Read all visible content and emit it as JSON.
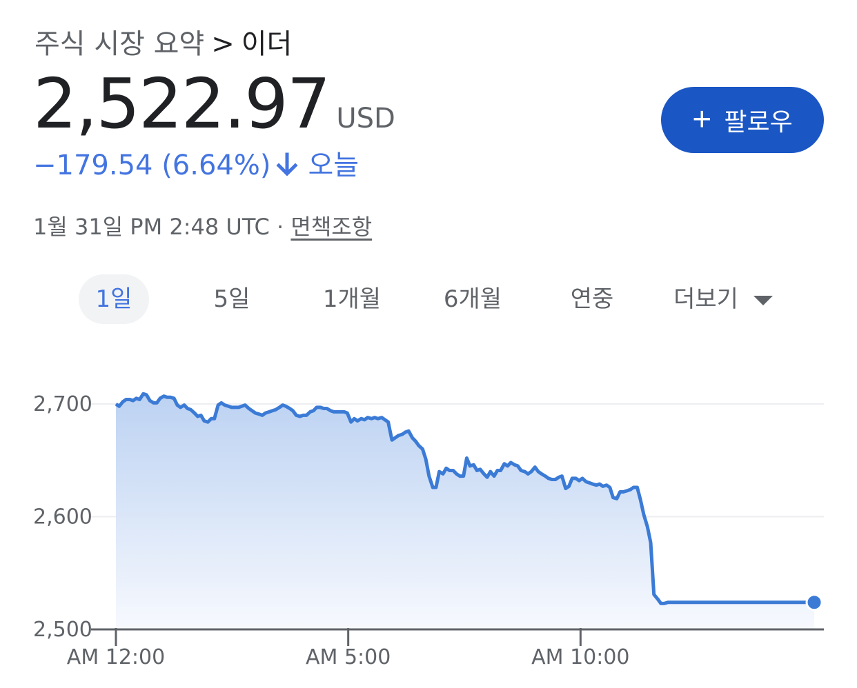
{
  "breadcrumb": {
    "parent": "주식 시장 요약",
    "separator": ">",
    "current": "이더"
  },
  "quote": {
    "price": "2,522.97",
    "currency": "USD",
    "change": "−179.54 (6.64%)",
    "period": "오늘",
    "timestamp": "1월 31일 PM 2:48 UTC ·",
    "disclaimer": "면책조항"
  },
  "follow_button": {
    "label": "팔로우"
  },
  "tabs": [
    {
      "label": "1일",
      "active": true
    },
    {
      "label": "5일"
    },
    {
      "label": "1개월"
    },
    {
      "label": "6개월"
    },
    {
      "label": "연중"
    },
    {
      "label": "더보기"
    }
  ],
  "colors": {
    "accent": "#4374e0",
    "button": "#1a56c4",
    "line": "#3b7bd6",
    "text": "#202124"
  },
  "chart_data": {
    "type": "area",
    "y_ticks": [
      "2,700",
      "2,600",
      "2,500"
    ],
    "y_tick_values": [
      2700,
      2600,
      2500
    ],
    "x_ticks": [
      "AM 12:00",
      "AM 5:00",
      "AM 10:00"
    ],
    "x_tick_hours": [
      0,
      5,
      10
    ],
    "xlim": [
      0,
      15
    ],
    "ylim": [
      2500,
      2700
    ],
    "grid": true,
    "series": [
      {
        "x": [
          0.0,
          0.07,
          0.15,
          0.22,
          0.3,
          0.37,
          0.44,
          0.51,
          0.59,
          0.66,
          0.73,
          0.81,
          0.88,
          0.95,
          1.03,
          1.1,
          1.17,
          1.25,
          1.32,
          1.39,
          1.47,
          1.54,
          1.61,
          1.69,
          1.76,
          1.83,
          1.9,
          1.98,
          2.05,
          2.12,
          2.2,
          2.27,
          2.34,
          2.42,
          2.49,
          2.56,
          2.64,
          2.71,
          2.78,
          2.86,
          2.93,
          3.0,
          3.08,
          3.15,
          3.22,
          3.3,
          3.37,
          3.44,
          3.52,
          3.59,
          3.66,
          3.74,
          3.81,
          3.88,
          3.96,
          4.03,
          4.1,
          4.18,
          4.25,
          4.32,
          4.4,
          4.47,
          4.54,
          4.62,
          4.69,
          4.76,
          4.84,
          4.91,
          4.98,
          5.06,
          5.13,
          5.2,
          5.28,
          5.35,
          5.42,
          5.5,
          5.57,
          5.64,
          5.72,
          5.79,
          5.86,
          5.94,
          6.01,
          6.08,
          6.16,
          6.23,
          6.3,
          6.38,
          6.45,
          6.52,
          6.6,
          6.67,
          6.74,
          6.82,
          6.89,
          6.96,
          7.04,
          7.11,
          7.18,
          7.26,
          7.33,
          7.4,
          7.48,
          7.55,
          7.62,
          7.7,
          7.77,
          7.84,
          7.92,
          7.99,
          8.06,
          8.14,
          8.21,
          8.28,
          8.36,
          8.43,
          8.5,
          8.58,
          8.65,
          8.72,
          8.8,
          8.87,
          8.94,
          9.02,
          9.09,
          9.16,
          9.24,
          9.31,
          9.38,
          9.46,
          9.53,
          9.6,
          9.68,
          9.75,
          9.82,
          9.9,
          9.97,
          10.04,
          10.12,
          10.19,
          10.26,
          10.34,
          10.41,
          10.48,
          10.56,
          10.63,
          10.7,
          10.78,
          10.85,
          10.92,
          11.0,
          11.07,
          11.14,
          11.22,
          11.29,
          11.36,
          11.44,
          11.51,
          11.58,
          11.66,
          11.73,
          11.8,
          11.88,
          11.95,
          12.02,
          12.1,
          12.17,
          12.24,
          12.32,
          12.39,
          12.46,
          12.54,
          12.61,
          12.68,
          12.76,
          12.83,
          12.9,
          12.98,
          13.05,
          13.12,
          13.2,
          13.27,
          13.34,
          13.42,
          13.49,
          13.56,
          13.64,
          13.71,
          13.78,
          13.86,
          13.93,
          14.0,
          14.07,
          14.15,
          14.22,
          14.29,
          14.37,
          14.44,
          14.51,
          14.59,
          14.66,
          14.73,
          14.81,
          14.88,
          14.95,
          15.03
        ],
        "y": [
          2700,
          2698,
          2702,
          2704,
          2704,
          2703,
          2705,
          2704,
          2709,
          2708,
          2703,
          2701,
          2701,
          2705,
          2707,
          2706,
          2706,
          2705,
          2699,
          2697,
          2699,
          2696,
          2695,
          2692,
          2689,
          2690,
          2685,
          2684,
          2687,
          2687,
          2699,
          2701,
          2699,
          2698,
          2697,
          2697,
          2697,
          2698,
          2699,
          2696,
          2694,
          2692,
          2691,
          2690,
          2692,
          2693,
          2694,
          2695,
          2697,
          2699,
          2698,
          2696,
          2694,
          2690,
          2689,
          2690,
          2690,
          2693,
          2694,
          2697,
          2697,
          2696,
          2696,
          2694,
          2693,
          2693,
          2693,
          2693,
          2692,
          2684,
          2687,
          2685,
          2687,
          2686,
          2688,
          2687,
          2688,
          2687,
          2688,
          2686,
          2684,
          2668,
          2670,
          2672,
          2673,
          2675,
          2676,
          2670,
          2667,
          2663,
          2660,
          2651,
          2636,
          2626,
          2626,
          2640,
          2638,
          2643,
          2641,
          2641,
          2638,
          2636,
          2636,
          2652,
          2645,
          2646,
          2641,
          2642,
          2638,
          2635,
          2640,
          2636,
          2641,
          2641,
          2647,
          2645,
          2648,
          2646,
          2645,
          2641,
          2640,
          2638,
          2640,
          2644,
          2640,
          2638,
          2636,
          2634,
          2633,
          2633,
          2635,
          2636,
          2625,
          2627,
          2634,
          2634,
          2632,
          2634,
          2631,
          2630,
          2629,
          2628,
          2629,
          2627,
          2628,
          2626,
          2617,
          2616,
          2622,
          2622,
          2623,
          2624,
          2626,
          2626,
          2615,
          2602,
          2591,
          2577,
          2531,
          2527,
          2523,
          2523,
          2524,
          2524,
          2524,
          2524,
          2524,
          2524,
          2524,
          2524,
          2524,
          2524,
          2524,
          2524,
          2524,
          2524,
          2524,
          2524,
          2524,
          2524,
          2524,
          2524,
          2524,
          2524,
          2524,
          2524,
          2524,
          2524,
          2524,
          2524,
          2524,
          2524,
          2524,
          2524,
          2524,
          2524,
          2524,
          2524,
          2524,
          2524,
          2524,
          2524,
          2524,
          2524,
          2524,
          2524
        ]
      }
    ]
  }
}
